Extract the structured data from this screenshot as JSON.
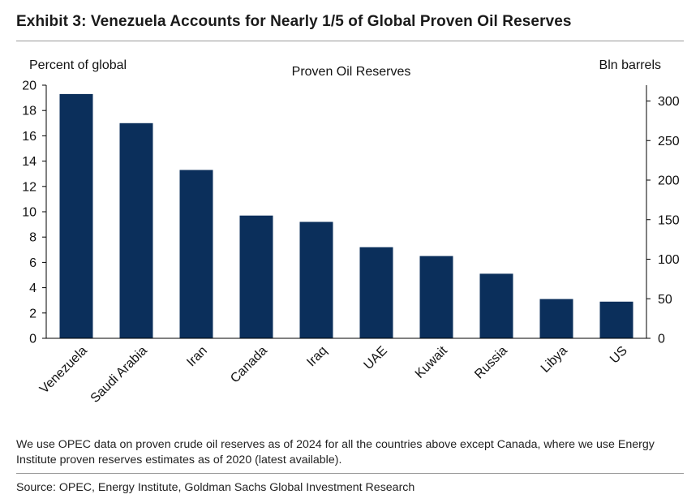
{
  "exhibit_title": "Exhibit 3: Venezuela Accounts for Nearly 1/5 of Global Proven Oil Reserves",
  "note": "We use OPEC data on proven crude oil reserves as of 2024 for all the countries above except Canada, where we use Energy Institute proven reserves estimates as of 2020 (latest available).",
  "source": "Source: OPEC, Energy Institute, Goldman Sachs Global Investment Research",
  "colors": {
    "bar": "#0b2f5b"
  },
  "chart_data": {
    "type": "bar",
    "title": "Proven Oil Reserves",
    "ylabel": "Percent of global",
    "y2label": "Bln barrels",
    "categories": [
      "Venezuela",
      "Saudi Arabia",
      "Iran",
      "Canada",
      "Iraq",
      "UAE",
      "Kuwait",
      "Russia",
      "Libya",
      "US"
    ],
    "values": [
      19.3,
      17.0,
      13.3,
      9.7,
      9.2,
      7.2,
      6.5,
      5.1,
      3.1,
      2.9
    ],
    "ylim": [
      0,
      20
    ],
    "yticks": [
      0,
      2,
      4,
      6,
      8,
      10,
      12,
      14,
      16,
      18,
      20
    ],
    "y2lim": [
      0,
      320
    ],
    "y2ticks": [
      0,
      50,
      100,
      150,
      200,
      250,
      300
    ],
    "grid": false,
    "legend": "none"
  }
}
